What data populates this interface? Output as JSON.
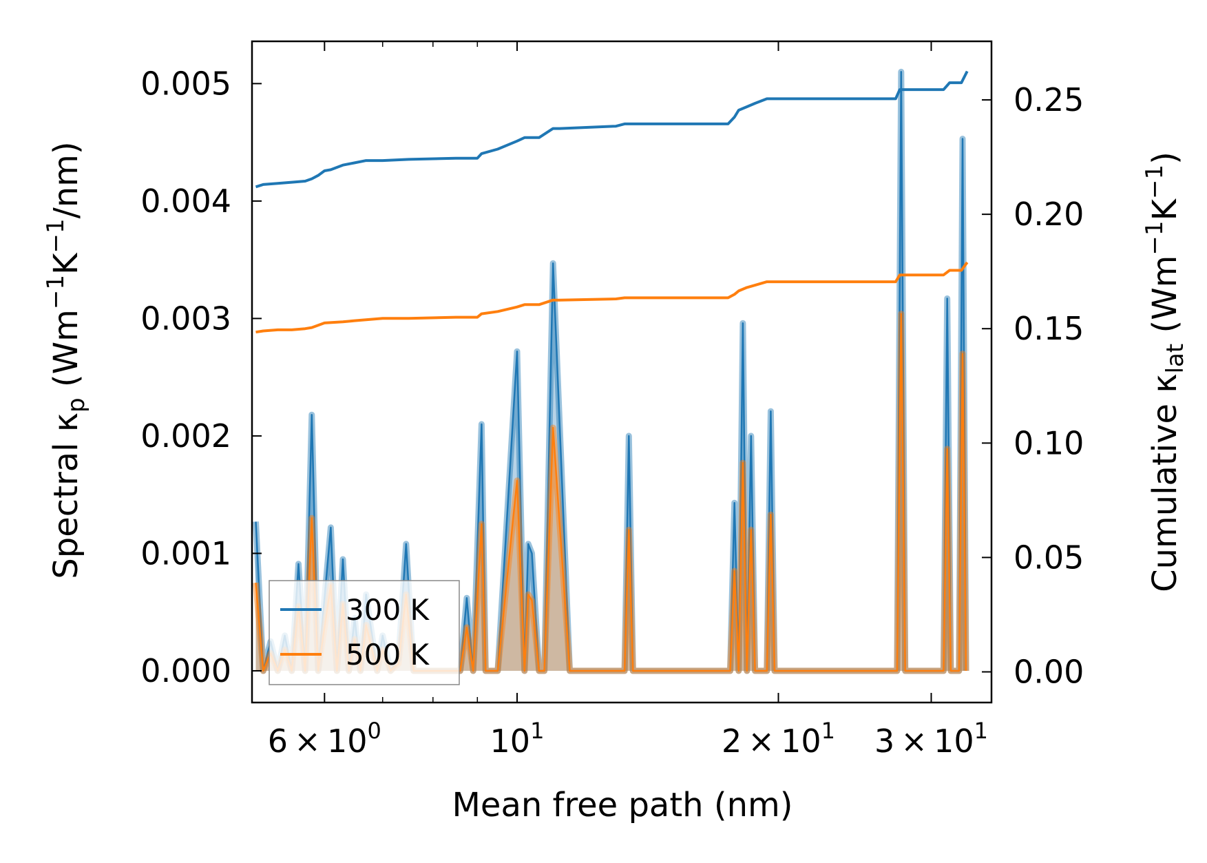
{
  "chart_data": {
    "type": "line",
    "xlabel": "Mean free path (nm)",
    "xscale": "log",
    "xlim": [
      4.95,
      35.2
    ],
    "x_ticks": [
      {
        "value": 6,
        "mant": "6",
        "exp": "0"
      },
      {
        "value": 10,
        "mant": "",
        "exp": "1"
      },
      {
        "value": 20,
        "mant": "2",
        "exp": "1"
      },
      {
        "value": 30,
        "mant": "3",
        "exp": "1"
      }
    ],
    "x_minor_ticks": [
      7,
      8,
      9,
      40
    ],
    "left_axis": {
      "label_prefix": "Spectral κ",
      "label_sub": "p",
      "label_unit_parts": [
        " (Wm",
        "−1",
        "K",
        "−1",
        "/nm)"
      ],
      "ylim": [
        -0.00027,
        0.00536
      ],
      "ticks": [
        0.0,
        0.001,
        0.002,
        0.003,
        0.004,
        0.005
      ],
      "tick_labels": [
        "0.000",
        "0.001",
        "0.002",
        "0.003",
        "0.004",
        "0.005"
      ]
    },
    "right_axis": {
      "label_prefix": "Cumulative κ",
      "label_sub": "lat",
      "label_unit_parts": [
        " (Wm",
        "−1",
        "K",
        "−1",
        ")"
      ],
      "ylim": [
        -0.0134,
        0.2756
      ],
      "ticks": [
        0.0,
        0.05,
        0.1,
        0.15,
        0.2,
        0.25
      ],
      "tick_labels": [
        "0.00",
        "0.05",
        "0.10",
        "0.15",
        "0.20",
        "0.25"
      ]
    },
    "legend": {
      "position": "lower-left",
      "entries": [
        "300 K",
        "500 K"
      ]
    },
    "colors": {
      "s300": "#1f77b4",
      "s500": "#ff7f0e"
    },
    "spectral_300K": {
      "x": [
        5.0,
        5.1,
        5.2,
        5.3,
        5.4,
        5.5,
        5.6,
        5.7,
        5.8,
        5.9,
        6.0,
        6.1,
        6.2,
        6.3,
        6.4,
        6.5,
        6.6,
        6.7,
        6.9,
        7.0,
        7.15,
        7.3,
        7.45,
        7.6,
        7.75,
        7.85,
        8.0,
        8.1,
        8.6,
        8.75,
        8.9,
        9.1,
        9.2,
        9.3,
        9.4,
        9.5,
        9.9,
        10.0,
        10.2,
        10.3,
        10.4,
        10.6,
        10.75,
        11.0,
        11.5,
        11.6,
        11.7,
        11.9,
        13.3,
        13.45,
        13.6,
        17.6,
        17.8,
        18.0,
        18.2,
        18.4,
        18.6,
        18.8,
        19.0,
        19.4,
        19.6,
        19.8,
        20.7,
        20.9,
        21.1,
        27.4,
        27.7,
        28.0,
        31.0,
        31.3,
        31.6,
        32.3,
        32.6,
        32.9
      ],
      "y": [
        0.00127,
        0.0,
        0.00025,
        0.0,
        0.0003,
        0.0,
        0.00091,
        0.0,
        0.00218,
        0.0,
        0.00062,
        0.00122,
        0.0,
        0.00095,
        0.0,
        0.00045,
        0.0,
        0.00065,
        0.0,
        0.0003,
        0.0,
        0.0001,
        0.00108,
        0.0,
        0.0,
        0.0,
        0.0,
        0.0,
        0.0,
        0.00062,
        0.0,
        0.0021,
        0.0,
        0.0,
        0.0,
        0.0,
        0.00219,
        0.00272,
        0.0,
        0.00108,
        0.001,
        0.0,
        0.0,
        0.00347,
        0.0,
        0.0,
        0.0,
        0.0,
        0.0,
        0.002,
        0.0,
        0.0,
        0.00143,
        0.0,
        0.00296,
        0.0,
        0.002,
        0.0,
        0.0,
        0.0,
        0.00221,
        0.0,
        0.0,
        0.0,
        0.0,
        0.0,
        0.0051,
        0.0,
        0.0,
        0.00317,
        0.0,
        0.0,
        0.00453,
        0.0
      ]
    },
    "spectral_500K": {
      "x": [
        5.0,
        5.1,
        5.2,
        5.3,
        5.4,
        5.5,
        5.6,
        5.7,
        5.8,
        5.9,
        6.0,
        6.1,
        6.2,
        6.3,
        6.4,
        6.5,
        6.6,
        6.7,
        6.9,
        7.0,
        7.15,
        7.3,
        7.45,
        7.6,
        7.75,
        7.85,
        8.0,
        8.1,
        8.6,
        8.75,
        8.9,
        9.1,
        9.2,
        9.3,
        9.4,
        9.5,
        9.9,
        10.0,
        10.2,
        10.3,
        10.4,
        10.6,
        10.75,
        11.0,
        11.5,
        11.6,
        11.7,
        11.9,
        13.3,
        13.45,
        13.6,
        17.6,
        17.8,
        18.0,
        18.2,
        18.4,
        18.6,
        18.8,
        19.0,
        19.4,
        19.6,
        19.8,
        20.7,
        20.9,
        21.1,
        27.4,
        27.7,
        28.0,
        31.0,
        31.3,
        31.6,
        32.3,
        32.6,
        32.9
      ],
      "y": [
        0.00075,
        0.0,
        0.00015,
        0.0,
        0.00018,
        0.0,
        0.00055,
        0.0,
        0.0013,
        0.0,
        0.00037,
        0.00073,
        0.0,
        0.00057,
        0.0,
        0.00027,
        0.0,
        0.00039,
        0.0,
        0.00018,
        0.0,
        6e-05,
        0.00065,
        0.0,
        0.0,
        0.0,
        0.0,
        0.0,
        0.0,
        0.00037,
        0.0,
        0.00125,
        0.0,
        0.0,
        0.0,
        0.0,
        0.00131,
        0.00162,
        0.0,
        0.00065,
        0.0006,
        0.0,
        0.0,
        0.00207,
        0.0,
        0.0,
        0.0,
        0.0,
        0.0,
        0.0012,
        0.0,
        0.0,
        0.00085,
        0.0,
        0.00177,
        0.0,
        0.0012,
        0.0,
        0.0,
        0.0,
        0.00133,
        0.0,
        0.0,
        0.0,
        0.0,
        0.0,
        0.00304,
        0.0,
        0.0,
        0.00189,
        0.0,
        0.0,
        0.0027,
        0.0
      ]
    },
    "cumulative_300K": {
      "x": [
        5.0,
        5.1,
        5.3,
        5.5,
        5.7,
        5.8,
        5.9,
        6.0,
        6.1,
        6.3,
        6.5,
        6.7,
        7.0,
        7.5,
        8.5,
        9.0,
        9.1,
        9.5,
        10.0,
        10.2,
        10.6,
        11.0,
        11.2,
        13.0,
        13.3,
        13.4,
        17.5,
        17.8,
        18.0,
        18.4,
        18.8,
        19.4,
        20.0,
        20.8,
        27.3,
        27.6,
        30.0,
        31.0,
        31.5,
        32.5,
        33.0
      ],
      "y": [
        0.212,
        0.213,
        0.2135,
        0.214,
        0.2145,
        0.2155,
        0.217,
        0.219,
        0.2195,
        0.2215,
        0.2225,
        0.2235,
        0.2235,
        0.224,
        0.2245,
        0.2245,
        0.2265,
        0.2285,
        0.232,
        0.2335,
        0.2335,
        0.2375,
        0.2375,
        0.2385,
        0.2395,
        0.2395,
        0.2395,
        0.2425,
        0.2455,
        0.247,
        0.2485,
        0.2505,
        0.2505,
        0.2505,
        0.2505,
        0.2545,
        0.2545,
        0.2545,
        0.2575,
        0.2575,
        0.2625
      ]
    },
    "cumulative_500K": {
      "x": [
        5.0,
        5.1,
        5.3,
        5.5,
        5.7,
        5.8,
        5.9,
        6.0,
        6.3,
        6.5,
        7.0,
        7.5,
        8.5,
        9.0,
        9.1,
        9.5,
        10.0,
        10.2,
        10.6,
        11.0,
        11.2,
        13.0,
        13.3,
        13.4,
        17.5,
        17.8,
        18.0,
        18.4,
        18.8,
        19.4,
        20.0,
        20.8,
        27.3,
        27.6,
        30.0,
        31.0,
        31.5,
        32.5,
        33.0
      ],
      "y": [
        0.1485,
        0.149,
        0.1495,
        0.1495,
        0.15,
        0.1505,
        0.1515,
        0.1525,
        0.153,
        0.1535,
        0.1545,
        0.1545,
        0.155,
        0.155,
        0.1565,
        0.1575,
        0.1595,
        0.1605,
        0.1605,
        0.1625,
        0.1625,
        0.163,
        0.1635,
        0.1635,
        0.1635,
        0.165,
        0.1665,
        0.168,
        0.169,
        0.1705,
        0.1705,
        0.1705,
        0.1705,
        0.1735,
        0.1735,
        0.1735,
        0.1755,
        0.1755,
        0.179
      ]
    }
  }
}
